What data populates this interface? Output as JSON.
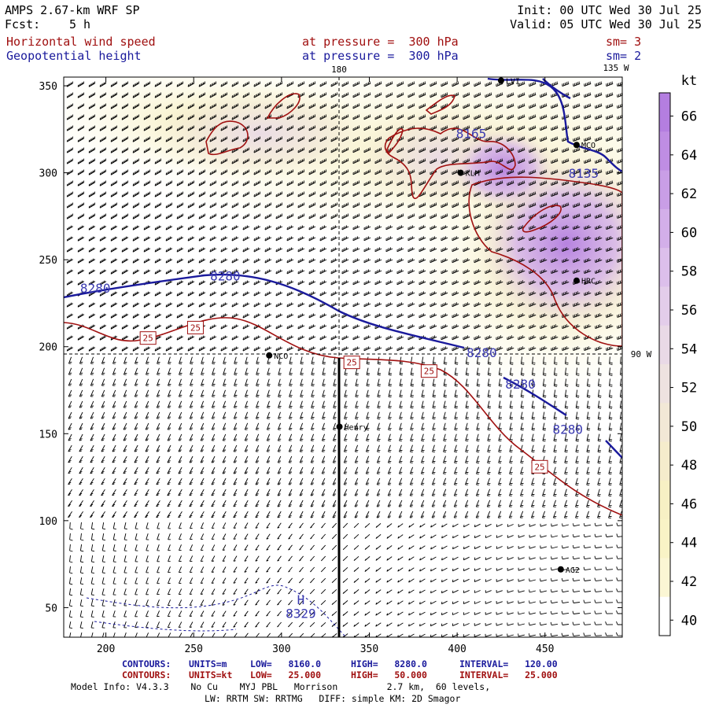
{
  "header": {
    "model": "AMPS 2.67-km WRF SP",
    "fcst_label": "Fcst:",
    "fcst_value": "5 h",
    "init": "Init: 00 UTC Wed 30 Jul 25",
    "valid": "Valid: 05 UTC Wed 30 Jul 25",
    "field1": "Horizontal wind speed",
    "field1_level": "at pressure =  300 hPa",
    "field1_sm": "sm= 3",
    "field2": "Geopotential height",
    "field2_level": "at pressure =  300 hPa",
    "field2_sm": "sm= 2"
  },
  "map": {
    "x_ticks": [
      "200",
      "250",
      "300",
      "350",
      "400",
      "450"
    ],
    "y_ticks": [
      "50",
      "100",
      "150",
      "200",
      "250",
      "300",
      "350"
    ],
    "x_range": [
      176,
      494
    ],
    "y_range": [
      33,
      355
    ],
    "meridian_180_label": "180",
    "meridian_135_label": "135 W",
    "meridian_90_label": "90 W",
    "stations": [
      {
        "name": "LVI",
        "x": 425,
        "y": 353
      },
      {
        "name": "MCO",
        "x": 468,
        "y": 316
      },
      {
        "name": "KLM",
        "x": 402,
        "y": 300
      },
      {
        "name": "HRC",
        "x": 468,
        "y": 238
      },
      {
        "name": "NCO",
        "x": 293,
        "y": 195
      },
      {
        "name": "Henry",
        "x": 333,
        "y": 154
      },
      {
        "name": "AG2",
        "x": 459,
        "y": 72
      }
    ],
    "height_labels": [
      {
        "text": "8280",
        "x": 194,
        "y": 231
      },
      {
        "text": "8280",
        "x": 268,
        "y": 238
      },
      {
        "text": "8280",
        "x": 414,
        "y": 194
      },
      {
        "text": "8280",
        "x": 436,
        "y": 176
      },
      {
        "text": "8280",
        "x": 463,
        "y": 150
      },
      {
        "text": "8165",
        "x": 408,
        "y": 320
      },
      {
        "text": "8135",
        "x": 472,
        "y": 297
      },
      {
        "text": "H",
        "x": 311,
        "y": 52
      },
      {
        "text": "8329",
        "x": 311,
        "y": 44
      }
    ],
    "speed_labels": [
      {
        "text": "25",
        "x": 224,
        "y": 205
      },
      {
        "text": "25",
        "x": 251,
        "y": 211
      },
      {
        "text": "25",
        "x": 340,
        "y": 191
      },
      {
        "text": "25",
        "x": 384,
        "y": 186
      },
      {
        "text": "25",
        "x": 447,
        "y": 131
      }
    ],
    "shaded_region_label": "wind speed shading"
  },
  "colorbar": {
    "unit": "kt",
    "ticks": [
      "66",
      "64",
      "62",
      "60",
      "58",
      "56",
      "54",
      "52",
      "50",
      "48",
      "46",
      "44",
      "42",
      "40"
    ],
    "colors": [
      "#b47ee0",
      "#bf8de3",
      "#c99ee6",
      "#d3afe9",
      "#dcbfeb",
      "#e3cdea",
      "#e9d9e6",
      "#eee2e0",
      "#f2e8d6",
      "#f5eccc",
      "#f7f0c4",
      "#f9f3c6",
      "#fbf6d4",
      "#ffffff"
    ]
  },
  "footer": {
    "line1_label": "CONTOURS:",
    "line1_units": "UNITS=m",
    "line1_low": "LOW=   8160.0",
    "line1_high": "HIGH=   8280.0",
    "line1_interval": "INTERVAL=   120.00",
    "line2_label": "CONTOURS:",
    "line2_units": "UNITS=kt",
    "line2_low": "LOW=   25.000",
    "line2_high": "HIGH=   50.000",
    "line2_interval": "INTERVAL=   25.000",
    "model_info": "Model Info: V4.3.3    No Cu    MYJ PBL   Morrison         2.7 km,  60 levels,",
    "physics": "LW: RRTM SW: RRTMG   DIFF: simple KM: 2D Smagor"
  }
}
